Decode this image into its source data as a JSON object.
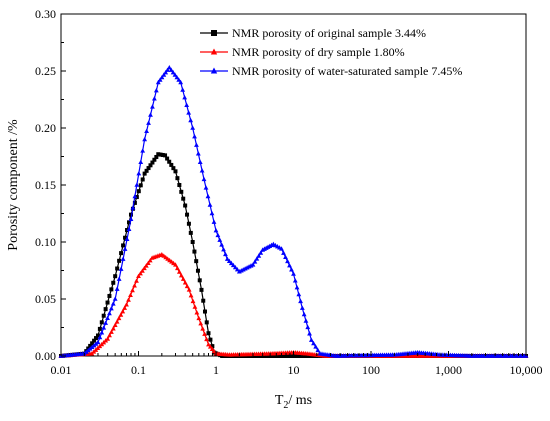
{
  "chart_data": {
    "type": "line",
    "xscale": "log",
    "xlim": [
      0.01,
      10000
    ],
    "ylim": [
      0,
      0.3
    ],
    "xticks": [
      0.01,
      0.1,
      1,
      10,
      100,
      1000,
      10000
    ],
    "xtick_labels": [
      "0.01",
      "0.1",
      "1",
      "10",
      "100",
      "1,000",
      "10,000"
    ],
    "yticks": [
      0,
      0.05,
      0.1,
      0.15,
      0.2,
      0.25,
      0.3
    ],
    "ytick_labels": [
      "0.00",
      "0.05",
      "0.10",
      "0.15",
      "0.20",
      "0.25",
      "0.30"
    ],
    "xlabel_main": "T",
    "xlabel_sub": "2",
    "xlabel_rest": "/ ms",
    "ylabel": "Porosity component /%",
    "legend_position": "top-right",
    "grid": false,
    "series": [
      {
        "name": "NMR porosity of original sample 3.44%",
        "color": "#000000",
        "marker": "square",
        "points": [
          [
            0.01,
            0
          ],
          [
            0.02,
            0.002
          ],
          [
            0.03,
            0.018
          ],
          [
            0.05,
            0.07
          ],
          [
            0.08,
            0.124
          ],
          [
            0.12,
            0.16
          ],
          [
            0.18,
            0.177
          ],
          [
            0.22,
            0.176
          ],
          [
            0.3,
            0.162
          ],
          [
            0.4,
            0.132
          ],
          [
            0.5,
            0.1
          ],
          [
            0.65,
            0.058
          ],
          [
            0.8,
            0.02
          ],
          [
            0.95,
            0.003
          ],
          [
            1.2,
            0
          ],
          [
            10000,
            0
          ]
        ]
      },
      {
        "name": "NMR porosity of dry sample 1.80%",
        "color": "#ff0000",
        "marker": "triangle",
        "points": [
          [
            0.01,
            0
          ],
          [
            0.025,
            0.002
          ],
          [
            0.04,
            0.015
          ],
          [
            0.07,
            0.045
          ],
          [
            0.1,
            0.07
          ],
          [
            0.15,
            0.086
          ],
          [
            0.2,
            0.089
          ],
          [
            0.3,
            0.08
          ],
          [
            0.45,
            0.058
          ],
          [
            0.6,
            0.033
          ],
          [
            0.8,
            0.01
          ],
          [
            1.0,
            0.002
          ],
          [
            1.5,
            0.001
          ],
          [
            5,
            0.002
          ],
          [
            10,
            0.003
          ],
          [
            15,
            0.002
          ],
          [
            25,
            0
          ],
          [
            10000,
            0
          ]
        ]
      },
      {
        "name": "NMR porosity of water-saturated sample 7.45%",
        "color": "#0000ff",
        "marker": "triangle",
        "points": [
          [
            0.01,
            0
          ],
          [
            0.02,
            0.002
          ],
          [
            0.03,
            0.012
          ],
          [
            0.05,
            0.05
          ],
          [
            0.08,
            0.12
          ],
          [
            0.12,
            0.19
          ],
          [
            0.18,
            0.24
          ],
          [
            0.25,
            0.253
          ],
          [
            0.35,
            0.24
          ],
          [
            0.5,
            0.2
          ],
          [
            0.7,
            0.155
          ],
          [
            1.0,
            0.11
          ],
          [
            1.4,
            0.085
          ],
          [
            2,
            0.074
          ],
          [
            3,
            0.08
          ],
          [
            4,
            0.093
          ],
          [
            5.5,
            0.098
          ],
          [
            7,
            0.094
          ],
          [
            10,
            0.072
          ],
          [
            13,
            0.042
          ],
          [
            17,
            0.014
          ],
          [
            22,
            0.002
          ],
          [
            35,
            0
          ],
          [
            200,
            0.001
          ],
          [
            400,
            0.003
          ],
          [
            800,
            0.001
          ],
          [
            2000,
            0
          ],
          [
            10000,
            0
          ]
        ]
      }
    ]
  }
}
